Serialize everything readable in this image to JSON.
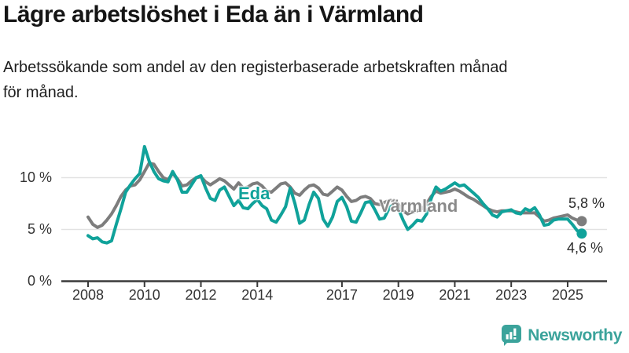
{
  "chart_data": {
    "type": "line",
    "title": "Lägre arbetslöshet i Eda än i Värmland",
    "subtitle_lines": [
      "Arbetssökande som andel av den registerbaserade arbetskraften månad",
      "för månad."
    ],
    "unit": "%",
    "grid": "horizontal",
    "legend_position": "inline-labels",
    "x_start_year": 2008,
    "x_interval_months": 2,
    "x_end_label_x": 2025.5,
    "x_ticks": [
      "2008",
      "2010",
      "2012",
      "2014",
      "2017",
      "2019",
      "2021",
      "2023",
      "2025"
    ],
    "y_ticks": [
      {
        "value": 0,
        "label": "0 %"
      },
      {
        "value": 5,
        "label": "5 %"
      },
      {
        "value": 10,
        "label": "10 %"
      }
    ],
    "y_axis_max_visible": 13.5,
    "series": [
      {
        "name": "Värmland",
        "color": "#7d7d7d",
        "label_color": "#8a8a8a",
        "end_label": "5,8 %",
        "end_value": 5.8,
        "values": [
          6.2,
          5.5,
          5.2,
          5.4,
          5.9,
          6.5,
          7.3,
          8.2,
          8.8,
          9.2,
          9.3,
          9.8,
          10.6,
          11.4,
          11.3,
          10.6,
          10.0,
          9.8,
          10.4,
          9.9,
          9.2,
          9.3,
          9.7,
          10.0,
          10.1,
          9.6,
          9.3,
          9.6,
          9.9,
          9.7,
          9.3,
          8.9,
          9.5,
          9.0,
          9.1,
          9.4,
          9.5,
          9.2,
          8.7,
          8.6,
          9.0,
          9.4,
          9.5,
          9.1,
          8.5,
          8.3,
          8.8,
          9.2,
          9.3,
          9.0,
          8.4,
          8.3,
          8.7,
          9.1,
          8.8,
          8.2,
          7.7,
          7.8,
          8.1,
          8.2,
          8.0,
          7.5,
          7.4,
          7.6,
          7.8,
          7.8,
          7.4,
          6.8,
          6.5,
          6.7,
          6.8,
          7.0,
          7.5,
          8.2,
          8.7,
          8.5,
          8.6,
          8.7,
          8.9,
          8.7,
          8.4,
          8.1,
          7.9,
          7.6,
          7.3,
          7.0,
          6.8,
          6.7,
          6.8,
          6.8,
          6.8,
          6.7,
          6.6,
          6.6,
          6.6,
          6.6,
          6.2,
          5.8,
          5.9,
          6.1,
          6.2,
          6.3,
          6.4,
          6.1,
          5.9,
          5.8
        ]
      },
      {
        "name": "Eda",
        "color": "#10a29a",
        "label_color": "#10a29a",
        "end_label": "4,6 %",
        "end_value": 4.6,
        "values": [
          4.4,
          4.1,
          4.2,
          3.8,
          3.7,
          3.9,
          5.5,
          7.0,
          8.6,
          9.3,
          9.9,
          10.4,
          13.0,
          11.6,
          10.6,
          9.9,
          9.7,
          9.6,
          10.6,
          9.8,
          8.6,
          8.6,
          9.3,
          10.0,
          10.2,
          9.0,
          8.0,
          7.8,
          8.8,
          9.1,
          8.2,
          7.3,
          7.8,
          7.1,
          7.0,
          7.5,
          7.9,
          7.3,
          7.0,
          5.9,
          5.7,
          6.4,
          7.2,
          9.0,
          7.5,
          5.6,
          5.9,
          7.4,
          8.6,
          8.0,
          6.0,
          5.3,
          6.2,
          7.7,
          8.1,
          7.2,
          5.8,
          5.7,
          6.6,
          7.6,
          7.7,
          6.9,
          6.0,
          6.1,
          7.0,
          7.5,
          7.0,
          5.9,
          5.0,
          5.4,
          5.9,
          5.8,
          6.5,
          8.0,
          9.1,
          8.7,
          8.9,
          9.2,
          9.5,
          9.2,
          9.3,
          8.9,
          8.5,
          8.1,
          7.5,
          7.0,
          6.4,
          6.2,
          6.7,
          6.8,
          6.9,
          6.6,
          6.5,
          7.0,
          6.8,
          7.1,
          6.4,
          5.4,
          5.5,
          5.9,
          6.0,
          6.0,
          6.0,
          5.5,
          4.9,
          4.6
        ]
      }
    ]
  },
  "branding": {
    "logo_text": "Newsworthy",
    "logo_color": "#3ba39b",
    "logo_icon": "bar-chart-speech-bubble"
  }
}
